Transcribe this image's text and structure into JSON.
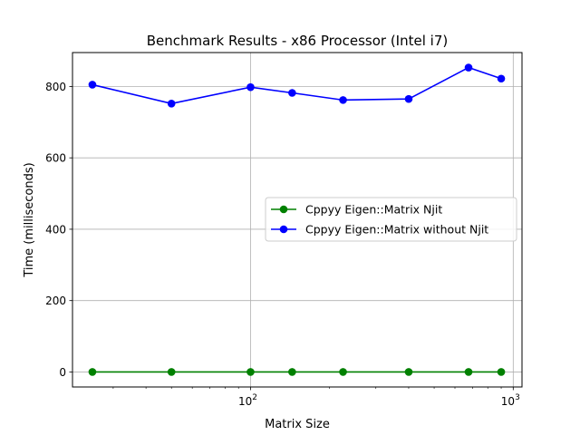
{
  "chart_data": {
    "type": "line",
    "title": "Benchmark Results - x86 Processor (Intel i7)",
    "xlabel": "Matrix Size",
    "ylabel": "Time (milliseconds)",
    "xscale": "log",
    "xlim": [
      21,
      1080
    ],
    "ylim": [
      -42,
      895
    ],
    "grid": true,
    "legend_position": "center-right",
    "x": [
      25,
      50,
      100,
      144,
      225,
      400,
      676,
      900
    ],
    "x_ticks": [
      {
        "value": 100,
        "base": "10",
        "exp": "2"
      },
      {
        "value": 1000,
        "base": "10",
        "exp": "3"
      }
    ],
    "y_ticks": [
      0,
      200,
      400,
      600,
      800
    ],
    "series": [
      {
        "name": "Cppyy Eigen::Matrix Njit",
        "color": "#008000",
        "values": [
          0,
          0,
          0,
          0,
          0,
          0,
          0,
          0
        ]
      },
      {
        "name": "Cppyy Eigen::Matrix without Njit",
        "color": "#0000ff",
        "values": [
          805,
          752,
          798,
          782,
          762,
          765,
          853,
          822
        ]
      }
    ]
  }
}
